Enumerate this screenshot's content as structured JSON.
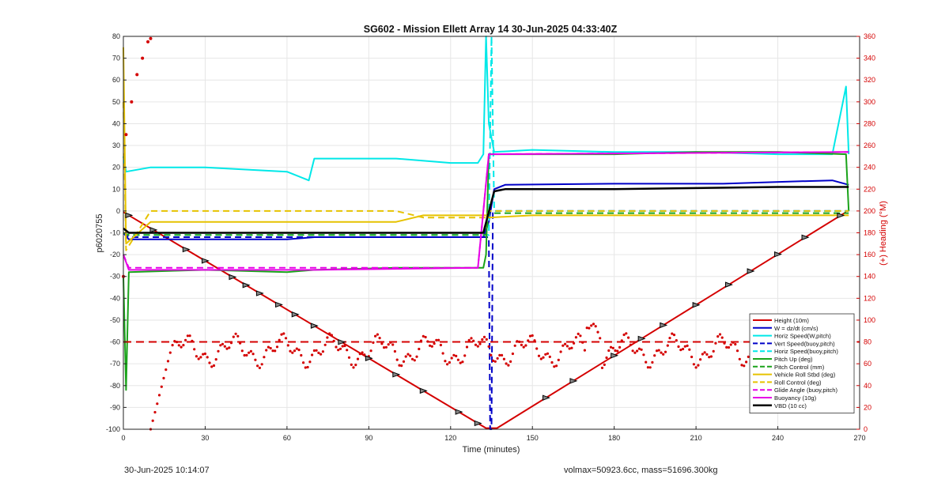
{
  "footer": {
    "timestamp": "30-Jun-2025 10:14:07",
    "volmax_mass": "volmax=50923.6cc, mass=51696.300kg"
  },
  "colors": {
    "red": "#d40000",
    "blue": "#0000c8",
    "cyan": "#00e8e8",
    "green": "#1aa31a",
    "yellow": "#e6c200",
    "magenta": "#e600e6",
    "black": "#000000"
  },
  "chart_data": {
    "type": "line",
    "title": "SG602 - Mission Ellett Array 14 30-Jun-2025 04:33:40Z",
    "xlabel": "Time (minutes)",
    "ylabel": "p6020755",
    "y2label": "(+) Heading (°M)",
    "xlim": [
      0,
      270
    ],
    "ylim": [
      -100,
      80
    ],
    "y2lim": [
      0,
      360
    ],
    "xticks": [
      0,
      30,
      60,
      90,
      120,
      150,
      180,
      210,
      240,
      270
    ],
    "yticks": [
      -100,
      -90,
      -80,
      -70,
      -60,
      -50,
      -40,
      -30,
      -20,
      -10,
      0,
      10,
      20,
      30,
      40,
      50,
      60,
      70,
      80
    ],
    "y2ticks": [
      0,
      20,
      40,
      60,
      80,
      100,
      120,
      140,
      160,
      180,
      200,
      220,
      240,
      260,
      280,
      300,
      320,
      340,
      360
    ],
    "grid": true,
    "legend_position": "bottom-right",
    "series": [
      {
        "name": "Height (10m)",
        "color": "#d40000",
        "style": "solid",
        "width": 2,
        "points": [
          [
            0,
            -0.5
          ],
          [
            133,
            -99.5
          ],
          [
            137,
            -99.5
          ],
          [
            265,
            -0.5
          ]
        ]
      },
      {
        "name": "W = dz/dt (cm/s)",
        "color": "#0000c8",
        "style": "solid",
        "width": 2,
        "points": [
          [
            0,
            -10
          ],
          [
            2,
            -13
          ],
          [
            10,
            -13
          ],
          [
            30,
            -13
          ],
          [
            60,
            -13
          ],
          [
            70,
            -12
          ],
          [
            100,
            -12
          ],
          [
            132,
            -12
          ],
          [
            134,
            -5
          ],
          [
            136,
            10
          ],
          [
            140,
            12
          ],
          [
            180,
            12.5
          ],
          [
            220,
            12.5
          ],
          [
            245,
            13.5
          ],
          [
            260,
            14
          ],
          [
            266,
            12
          ]
        ]
      },
      {
        "name": "Horiz Speed(W,pitch)",
        "color": "#00e8e8",
        "style": "solid",
        "width": 2,
        "points": [
          [
            0,
            25
          ],
          [
            1,
            18
          ],
          [
            10,
            20
          ],
          [
            30,
            20
          ],
          [
            60,
            18
          ],
          [
            68,
            14
          ],
          [
            70,
            24
          ],
          [
            100,
            24
          ],
          [
            120,
            22
          ],
          [
            130,
            22
          ],
          [
            132,
            26
          ],
          [
            133,
            80
          ],
          [
            134,
            40
          ],
          [
            136,
            27
          ],
          [
            150,
            28
          ],
          [
            180,
            27
          ],
          [
            210,
            27
          ],
          [
            240,
            26
          ],
          [
            260,
            26
          ],
          [
            265,
            57
          ],
          [
            266,
            26
          ]
        ]
      },
      {
        "name": "Vert Speed(buoy,pitch)",
        "color": "#0000c8",
        "style": "dashed",
        "width": 2,
        "points": [
          [
            0,
            -10
          ],
          [
            2,
            -12
          ],
          [
            60,
            -12
          ],
          [
            134,
            -12
          ],
          [
            134.5,
            -100
          ],
          [
            135,
            -100
          ],
          [
            135.5,
            0
          ],
          [
            150,
            0
          ],
          [
            266,
            0
          ]
        ]
      },
      {
        "name": "Horiz Speed(buoy,pitch)",
        "color": "#00e8e8",
        "style": "dashed",
        "width": 2,
        "points": [
          [
            0,
            -10
          ],
          [
            2,
            -11
          ],
          [
            60,
            -11
          ],
          [
            134,
            -11
          ],
          [
            135,
            80
          ],
          [
            136,
            0
          ],
          [
            150,
            0
          ],
          [
            266,
            0
          ]
        ]
      },
      {
        "name": "Pitch Up (deg)",
        "color": "#1aa31a",
        "style": "solid",
        "width": 2,
        "points": [
          [
            0,
            -30
          ],
          [
            1,
            -82
          ],
          [
            2,
            -28
          ],
          [
            30,
            -27
          ],
          [
            60,
            -28
          ],
          [
            70,
            -27
          ],
          [
            100,
            -26
          ],
          [
            132,
            -26
          ],
          [
            133,
            -20
          ],
          [
            134,
            26
          ],
          [
            150,
            26
          ],
          [
            180,
            26
          ],
          [
            210,
            27
          ],
          [
            240,
            27
          ],
          [
            265,
            26
          ],
          [
            266,
            0
          ]
        ]
      },
      {
        "name": "Pitch Control (mm)",
        "color": "#1aa31a",
        "style": "dashed",
        "width": 2,
        "points": [
          [
            0,
            -10
          ],
          [
            2,
            -11
          ],
          [
            60,
            -11
          ],
          [
            133,
            -11
          ],
          [
            134,
            -1
          ],
          [
            150,
            -1
          ],
          [
            266,
            -1
          ]
        ]
      },
      {
        "name": "Vehicle Roll Stbd (deg)",
        "color": "#e6c200",
        "style": "solid",
        "width": 2,
        "points": [
          [
            0,
            75
          ],
          [
            1,
            -15
          ],
          [
            10,
            -5
          ],
          [
            30,
            -5
          ],
          [
            60,
            -5
          ],
          [
            90,
            -5
          ],
          [
            100,
            -5
          ],
          [
            110,
            -2
          ],
          [
            133,
            -2
          ],
          [
            134,
            -3
          ],
          [
            150,
            -2
          ],
          [
            180,
            -2
          ],
          [
            210,
            -2
          ],
          [
            240,
            -2
          ],
          [
            266,
            -2
          ]
        ]
      },
      {
        "name": "Roll Control (deg)",
        "color": "#e6c200",
        "style": "dashed",
        "width": 2,
        "points": [
          [
            0,
            50
          ],
          [
            1,
            -18
          ],
          [
            10,
            0
          ],
          [
            60,
            0
          ],
          [
            100,
            0
          ],
          [
            110,
            -3
          ],
          [
            133,
            -3
          ],
          [
            134,
            0
          ],
          [
            150,
            0
          ],
          [
            266,
            0
          ]
        ]
      },
      {
        "name": "Glide Angle (buoy,pitch)",
        "color": "#e600e6",
        "style": "dashed",
        "width": 2,
        "points": [
          [
            0,
            -20
          ],
          [
            2,
            -26
          ],
          [
            70,
            -26
          ],
          [
            130,
            -26
          ],
          [
            134,
            26
          ],
          [
            266,
            27
          ]
        ]
      },
      {
        "name": "Buoyancy (10g)",
        "color": "#e600e6",
        "style": "solid",
        "width": 2,
        "points": [
          [
            0,
            -20
          ],
          [
            2,
            -27
          ],
          [
            70,
            -27
          ],
          [
            130,
            -26
          ],
          [
            134,
            26
          ],
          [
            266,
            27
          ]
        ]
      },
      {
        "name": "VBD (10 cc)",
        "color": "#000000",
        "style": "solid",
        "width": 2.5,
        "points": [
          [
            0,
            -8
          ],
          [
            2,
            -10
          ],
          [
            30,
            -10
          ],
          [
            60,
            -10
          ],
          [
            90,
            -10
          ],
          [
            132,
            -10
          ],
          [
            136,
            9
          ],
          [
            140,
            10
          ],
          [
            180,
            10
          ],
          [
            210,
            10.5
          ],
          [
            240,
            11
          ],
          [
            266,
            11
          ]
        ]
      }
    ],
    "heading_series": {
      "color": "#d40000",
      "style": "dots",
      "start_points": [
        [
          0,
          140
        ],
        [
          1,
          270
        ],
        [
          3,
          300
        ],
        [
          5,
          325
        ],
        [
          7,
          340
        ],
        [
          9,
          355
        ],
        [
          10,
          358
        ]
      ],
      "descent_segment": [
        [
          10,
          0
        ],
        [
          12,
          40
        ],
        [
          15,
          70
        ],
        [
          18,
          78
        ],
        [
          266,
          78
        ]
      ],
      "reference_line": 80
    },
    "markers_on_height": [
      2,
      11,
      23,
      30,
      40,
      45,
      50,
      57,
      63,
      70,
      80,
      90,
      100,
      110,
      123,
      130,
      155,
      165,
      180,
      190,
      198,
      210,
      222,
      230,
      240,
      250,
      263
    ]
  }
}
